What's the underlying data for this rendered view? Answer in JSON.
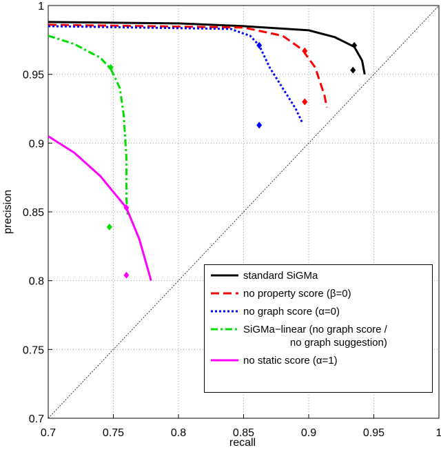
{
  "chart_data": {
    "type": "line",
    "xlabel": "recall",
    "ylabel": "precision",
    "xlim": [
      0.7,
      1
    ],
    "ylim": [
      0.7,
      1
    ],
    "xticks": [
      0.7,
      0.75,
      0.8,
      0.85,
      0.9,
      0.95,
      1
    ],
    "yticks": [
      0.7,
      0.75,
      0.8,
      0.85,
      0.9,
      0.95,
      1
    ],
    "grid": true,
    "legend": "lower right",
    "series": [
      {
        "name": "standard SiGMa",
        "color": "#000000",
        "linestyle": "-",
        "x": [
          0.7,
          0.8,
          0.85,
          0.9,
          0.92,
          0.935,
          0.941,
          0.943
        ],
        "values": [
          0.988,
          0.987,
          0.985,
          0.982,
          0.977,
          0.97,
          0.96,
          0.95
        ],
        "marker_x": [
          0.935,
          0.934
        ],
        "marker_values": [
          0.971,
          0.953
        ]
      },
      {
        "name": "no property score (β=0)",
        "color": "#ff0000",
        "linestyle": "--",
        "x": [
          0.7,
          0.85,
          0.88,
          0.895,
          0.905,
          0.912,
          0.914
        ],
        "values": [
          0.986,
          0.984,
          0.978,
          0.968,
          0.955,
          0.935,
          0.926
        ],
        "marker_x": [
          0.897,
          0.897
        ],
        "marker_values": [
          0.967,
          0.93
        ]
      },
      {
        "name": "no graph score (α=0)",
        "color": "#0000ff",
        "linestyle": ":",
        "x": [
          0.7,
          0.84,
          0.855,
          0.862,
          0.87,
          0.88,
          0.89,
          0.895
        ],
        "values": [
          0.985,
          0.983,
          0.978,
          0.971,
          0.955,
          0.94,
          0.925,
          0.915
        ],
        "marker_x": [
          0.862,
          0.862
        ],
        "marker_values": [
          0.971,
          0.913
        ]
      },
      {
        "name": "SiGMa−linear (no graph score /\nno graph suggestion)",
        "color": "#00dd00",
        "linestyle": "-.",
        "x": [
          0.7,
          0.72,
          0.74,
          0.748,
          0.755,
          0.758,
          0.76,
          0.76,
          0.761
        ],
        "values": [
          0.978,
          0.972,
          0.962,
          0.954,
          0.94,
          0.92,
          0.89,
          0.86,
          0.848
        ],
        "marker_x": [
          0.748,
          0.747
        ],
        "marker_values": [
          0.955,
          0.839
        ]
      },
      {
        "name": "no static score (α=1)",
        "color": "#ff00ff",
        "linestyle": "-",
        "x": [
          0.7,
          0.72,
          0.74,
          0.76,
          0.77,
          0.776,
          0.779
        ],
        "values": [
          0.905,
          0.893,
          0.876,
          0.853,
          0.83,
          0.81,
          0.8
        ],
        "marker_x": [
          0.76,
          0.76
        ],
        "marker_values": [
          0.853,
          0.804
        ]
      }
    ]
  }
}
